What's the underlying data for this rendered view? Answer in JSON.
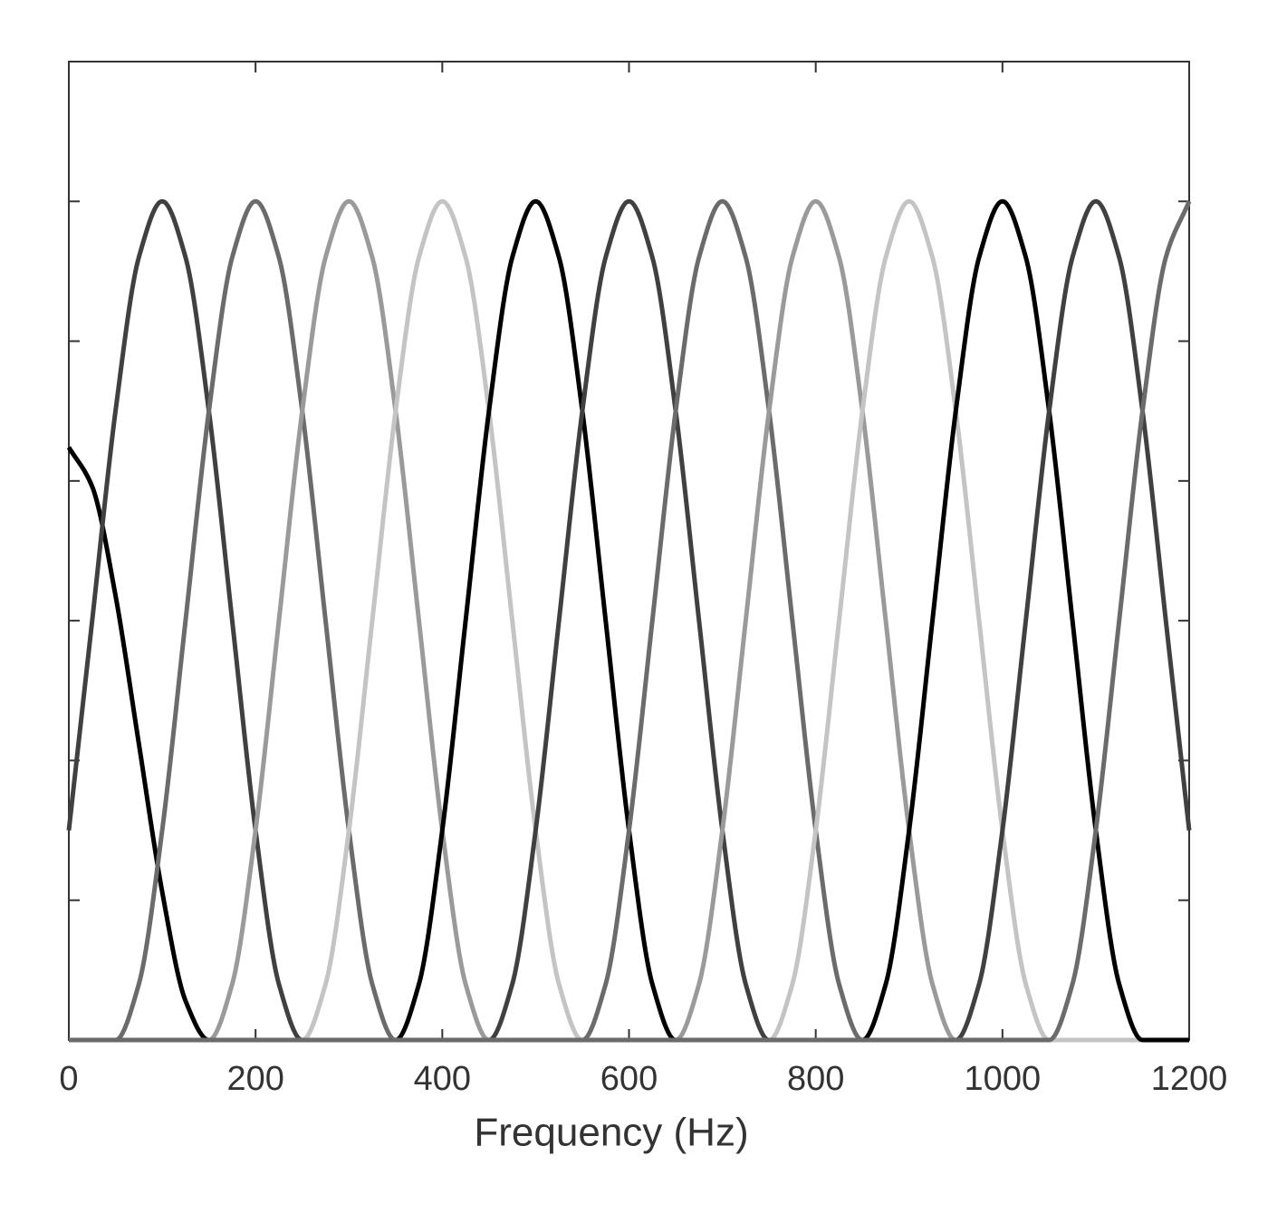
{
  "chart_data": {
    "type": "line",
    "x_label": "Frequency (Hz)",
    "x": [
      0,
      25,
      50,
      75,
      100,
      125,
      150,
      175,
      200,
      225,
      250,
      275,
      300,
      325,
      350,
      375,
      400,
      425,
      450,
      475,
      500,
      525,
      550,
      575,
      600,
      625,
      650,
      675,
      700,
      725,
      750,
      775,
      800,
      825,
      850,
      875,
      900,
      925,
      950,
      975,
      1000,
      1025,
      1050,
      1075,
      1100,
      1125,
      1150,
      1175,
      1200
    ],
    "xlim": [
      0,
      1200
    ],
    "xticks": [
      0,
      200,
      400,
      600,
      800,
      1000,
      1200
    ],
    "ylim": [
      0,
      7
    ],
    "yticks": [
      1,
      2,
      3,
      4,
      5,
      6
    ],
    "series": [
      {
        "color": "#000000",
        "values": [
          4.24,
          3.96,
          3.18,
          2.12,
          1.06,
          0.28,
          0,
          0,
          0,
          0,
          0,
          0,
          0,
          0,
          0,
          0,
          0,
          0,
          0,
          0,
          0,
          0,
          0,
          0,
          0,
          0,
          0,
          0,
          0,
          0,
          0,
          0,
          0,
          0,
          0,
          0,
          0,
          0,
          0,
          0,
          0,
          0,
          0,
          0,
          0,
          0,
          0,
          0,
          0
        ]
      },
      {
        "color": "#404040",
        "values": [
          1.5,
          3,
          4.5,
          5.6,
          6,
          5.6,
          4.5,
          3,
          1.5,
          0.4,
          0,
          0,
          0,
          0,
          0,
          0,
          0,
          0,
          0,
          0,
          0,
          0,
          0,
          0,
          0,
          0,
          0,
          0,
          0,
          0,
          0,
          0,
          0,
          0,
          0,
          0,
          0,
          0,
          0,
          0,
          0,
          0,
          0,
          0,
          0,
          0,
          0,
          0,
          0
        ]
      },
      {
        "color": "#6b6b6b",
        "values": [
          0,
          0,
          0,
          0.4,
          1.5,
          3,
          4.5,
          5.6,
          6,
          5.6,
          4.5,
          3,
          1.5,
          0.4,
          0,
          0,
          0,
          0,
          0,
          0,
          0,
          0,
          0,
          0,
          0,
          0,
          0,
          0,
          0,
          0,
          0,
          0,
          0,
          0,
          0,
          0,
          0,
          0,
          0,
          0,
          0,
          0,
          0,
          0,
          0,
          0,
          0,
          0,
          0
        ]
      },
      {
        "color": "#9a9a9a",
        "values": [
          0,
          0,
          0,
          0,
          0,
          0,
          0,
          0.4,
          1.5,
          3,
          4.5,
          5.6,
          6,
          5.6,
          4.5,
          3,
          1.5,
          0.4,
          0,
          0,
          0,
          0,
          0,
          0,
          0,
          0,
          0,
          0,
          0,
          0,
          0,
          0,
          0,
          0,
          0,
          0,
          0,
          0,
          0,
          0,
          0,
          0,
          0,
          0,
          0,
          0,
          0,
          0,
          0
        ]
      },
      {
        "color": "#c4c4c4",
        "values": [
          0,
          0,
          0,
          0,
          0,
          0,
          0,
          0,
          0,
          0,
          0,
          0.4,
          1.5,
          3,
          4.5,
          5.6,
          6,
          5.6,
          4.5,
          3,
          1.5,
          0.4,
          0,
          0,
          0,
          0,
          0,
          0,
          0,
          0,
          0,
          0,
          0,
          0,
          0,
          0,
          0,
          0,
          0,
          0,
          0,
          0,
          0,
          0,
          0,
          0,
          0,
          0,
          0
        ]
      },
      {
        "color": "#000000",
        "values": [
          0,
          0,
          0,
          0,
          0,
          0,
          0,
          0,
          0,
          0,
          0,
          0,
          0,
          0,
          0,
          0.4,
          1.5,
          3,
          4.5,
          5.6,
          6,
          5.6,
          4.5,
          3,
          1.5,
          0.4,
          0,
          0,
          0,
          0,
          0,
          0,
          0,
          0,
          0,
          0,
          0,
          0,
          0,
          0,
          0,
          0,
          0,
          0,
          0,
          0,
          0,
          0,
          0
        ]
      },
      {
        "color": "#404040",
        "values": [
          0,
          0,
          0,
          0,
          0,
          0,
          0,
          0,
          0,
          0,
          0,
          0,
          0,
          0,
          0,
          0,
          0,
          0,
          0,
          0.4,
          1.5,
          3,
          4.5,
          5.6,
          6,
          5.6,
          4.5,
          3,
          1.5,
          0.4,
          0,
          0,
          0,
          0,
          0,
          0,
          0,
          0,
          0,
          0,
          0,
          0,
          0,
          0,
          0,
          0,
          0,
          0,
          0
        ]
      },
      {
        "color": "#6b6b6b",
        "values": [
          0,
          0,
          0,
          0,
          0,
          0,
          0,
          0,
          0,
          0,
          0,
          0,
          0,
          0,
          0,
          0,
          0,
          0,
          0,
          0,
          0,
          0,
          0,
          0.4,
          1.5,
          3,
          4.5,
          5.6,
          6,
          5.6,
          4.5,
          3,
          1.5,
          0.4,
          0,
          0,
          0,
          0,
          0,
          0,
          0,
          0,
          0,
          0,
          0,
          0,
          0,
          0,
          0
        ]
      },
      {
        "color": "#9a9a9a",
        "values": [
          0,
          0,
          0,
          0,
          0,
          0,
          0,
          0,
          0,
          0,
          0,
          0,
          0,
          0,
          0,
          0,
          0,
          0,
          0,
          0,
          0,
          0,
          0,
          0,
          0,
          0,
          0,
          0.4,
          1.5,
          3,
          4.5,
          5.6,
          6,
          5.6,
          4.5,
          3,
          1.5,
          0.4,
          0,
          0,
          0,
          0,
          0,
          0,
          0,
          0,
          0,
          0,
          0
        ]
      },
      {
        "color": "#c4c4c4",
        "values": [
          0,
          0,
          0,
          0,
          0,
          0,
          0,
          0,
          0,
          0,
          0,
          0,
          0,
          0,
          0,
          0,
          0,
          0,
          0,
          0,
          0,
          0,
          0,
          0,
          0,
          0,
          0,
          0,
          0,
          0,
          0,
          0.4,
          1.5,
          3,
          4.5,
          5.6,
          6,
          5.6,
          4.5,
          3,
          1.5,
          0.4,
          0,
          0,
          0,
          0,
          0,
          0,
          0
        ]
      },
      {
        "color": "#000000",
        "values": [
          0,
          0,
          0,
          0,
          0,
          0,
          0,
          0,
          0,
          0,
          0,
          0,
          0,
          0,
          0,
          0,
          0,
          0,
          0,
          0,
          0,
          0,
          0,
          0,
          0,
          0,
          0,
          0,
          0,
          0,
          0,
          0,
          0,
          0,
          0,
          0.4,
          1.5,
          3,
          4.5,
          5.6,
          6,
          5.6,
          4.5,
          3,
          1.5,
          0.4,
          0,
          0,
          0
        ]
      },
      {
        "color": "#404040",
        "values": [
          0,
          0,
          0,
          0,
          0,
          0,
          0,
          0,
          0,
          0,
          0,
          0,
          0,
          0,
          0,
          0,
          0,
          0,
          0,
          0,
          0,
          0,
          0,
          0,
          0,
          0,
          0,
          0,
          0,
          0,
          0,
          0,
          0,
          0,
          0,
          0,
          0,
          0,
          0,
          0.4,
          1.5,
          3,
          4.5,
          5.6,
          6,
          5.6,
          4.5,
          3,
          1.5
        ]
      },
      {
        "color": "#6b6b6b",
        "values": [
          0,
          0,
          0,
          0,
          0,
          0,
          0,
          0,
          0,
          0,
          0,
          0,
          0,
          0,
          0,
          0,
          0,
          0,
          0,
          0,
          0,
          0,
          0,
          0,
          0,
          0,
          0,
          0,
          0,
          0,
          0,
          0,
          0,
          0,
          0,
          0,
          0,
          0,
          0,
          0,
          0,
          0,
          0,
          0.4,
          1.5,
          3,
          4.5,
          5.6,
          6
        ]
      }
    ]
  }
}
